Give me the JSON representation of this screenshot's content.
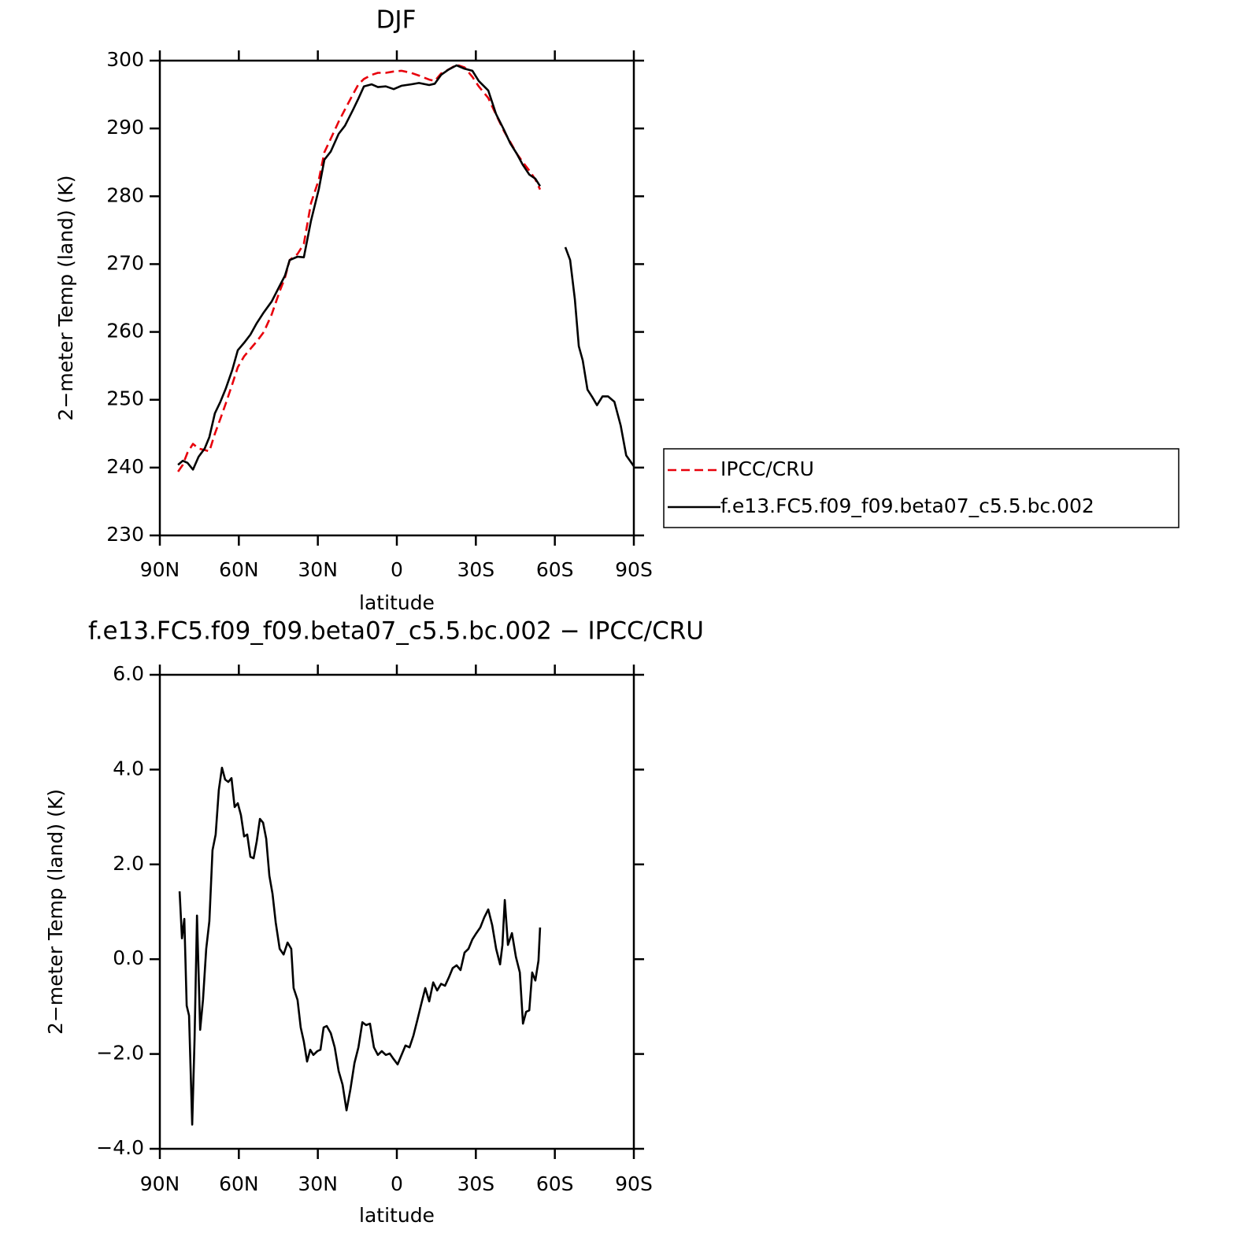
{
  "chart_data": [
    {
      "type": "line",
      "title": "DJF",
      "xlabel": "latitude",
      "ylabel": "2−meter Temp (land) (K)",
      "xlim": [
        90,
        -90
      ],
      "xticks": [
        {
          "value": 90,
          "label": "90N"
        },
        {
          "value": 60,
          "label": "60N"
        },
        {
          "value": 30,
          "label": "30N"
        },
        0,
        {
          "value": -30,
          "label": "30S"
        },
        {
          "value": -60,
          "label": "60S"
        },
        {
          "value": -90,
          "label": "90S"
        }
      ],
      "ylim": [
        230,
        300
      ],
      "yticks": [
        230,
        240,
        250,
        260,
        270,
        280,
        290,
        300
      ],
      "legend": "right",
      "x": [
        83.1,
        81.3,
        79.5,
        77.4,
        75.3,
        73,
        71.2,
        69.1,
        67,
        64.9,
        62.5,
        60.4,
        58,
        55.6,
        53.2,
        50.5,
        47.5,
        44.5,
        42.5,
        40.7,
        37.7,
        35.3,
        32.6,
        29.6,
        27.5,
        25.1,
        22.1,
        19.7,
        16.7,
        14.6,
        12.5,
        9.6,
        7.2,
        4.2,
        1.2,
        -1.8,
        -5.4,
        -8.4,
        -12.3,
        -14.4,
        -16.8,
        -19.7,
        -22.7,
        -25.7,
        -28.7,
        -31.1,
        -34.7,
        -37.7,
        -40.7,
        -43.1,
        -45.5,
        -47.9,
        -50.3,
        -52.6,
        -54.4,
        -59,
        -64,
        -65.8,
        -67.6,
        -69.1,
        -70.6,
        -72.4,
        -74.2,
        -76,
        -78.1,
        -80.2,
        -82.6,
        -85,
        -87.1,
        -90
      ],
      "series": [
        {
          "name": "IPCC/CRU",
          "color": "#e8000b",
          "dashed": true,
          "values": [
            239.4,
            240.4,
            242.2,
            243.5,
            242.8,
            242.6,
            242.4,
            245,
            247.2,
            249.5,
            252.3,
            254.8,
            256.4,
            257.5,
            258.6,
            260,
            262.6,
            266,
            268,
            270.6,
            271.5,
            273,
            279,
            282.5,
            286.5,
            288.5,
            291,
            292.8,
            295,
            296.5,
            297.3,
            297.9,
            298.2,
            298.2,
            298.4,
            298.5,
            298.2,
            297.8,
            297.2,
            297,
            298.1,
            298.7,
            299.4,
            299,
            297.6,
            296.2,
            294.5,
            292,
            289.6,
            288,
            286.3,
            285,
            283.8,
            282.5,
            281,
            null,
            null,
            null,
            null,
            null,
            null,
            null,
            null,
            null,
            null,
            null,
            null,
            null,
            null,
            null
          ]
        },
        {
          "name": "f.e13.FC5.f09_f09.beta07_c5.5.bc.002",
          "color": "#000000",
          "dashed": false,
          "values": [
            240.4,
            241,
            240.7,
            239.7,
            241.6,
            242.8,
            244.5,
            248,
            249.7,
            251.7,
            254.4,
            257.3,
            258.4,
            259.6,
            261.3,
            262.9,
            264.5,
            266.8,
            268.3,
            270.6,
            271.1,
            271,
            276.4,
            281.1,
            285.4,
            286.6,
            289.2,
            290.4,
            292.7,
            294.4,
            296.2,
            296.5,
            296.1,
            296.2,
            295.8,
            296.3,
            296.5,
            296.7,
            296.4,
            296.6,
            297.9,
            298.7,
            299.3,
            298.8,
            298.5,
            297,
            295.6,
            292.1,
            289.8,
            287.8,
            286.3,
            284.6,
            283.2,
            282.6,
            281.5,
            null,
            272.5,
            270.6,
            264.8,
            257.9,
            255.8,
            251.5,
            250.4,
            249.2,
            250.5,
            250.5,
            249.7,
            246.2,
            241.8,
            240.2
          ]
        }
      ]
    },
    {
      "type": "line",
      "title": "f.e13.FC5.f09_f09.beta07_c5.5.bc.002 − IPCC/CRU",
      "xlabel": "latitude",
      "ylabel": "2−meter Temp (land) (K)",
      "xlim": [
        90,
        -90
      ],
      "xticks": [
        {
          "value": 90,
          "label": "90N"
        },
        {
          "value": 60,
          "label": "60N"
        },
        {
          "value": 30,
          "label": "30N"
        },
        0,
        {
          "value": -30,
          "label": "30S"
        },
        {
          "value": -60,
          "label": "60S"
        },
        {
          "value": -90,
          "label": "90S"
        }
      ],
      "ylim": [
        -4,
        6
      ],
      "yticks": [
        {
          "value": -4,
          "label": "−4.0"
        },
        {
          "value": -2,
          "label": "−2.0"
        },
        {
          "value": 0,
          "label": "0.0"
        },
        {
          "value": 2,
          "label": "2.0"
        },
        {
          "value": 4,
          "label": "4.0"
        },
        {
          "value": 6,
          "label": "6.0"
        }
      ],
      "color": "#000000",
      "x": [
        82.5,
        81.6,
        80.7,
        79.8,
        78.9,
        77.7,
        76.8,
        75.9,
        74.7,
        73.6,
        72.4,
        71.2,
        70,
        68.8,
        67.6,
        66.4,
        65.2,
        64,
        62.8,
        61.6,
        60.4,
        59.2,
        58,
        56.8,
        55.6,
        54.4,
        53.2,
        52,
        50.8,
        49.6,
        48.4,
        47.2,
        46,
        44.5,
        43,
        41.5,
        40.1,
        39.2,
        37.7,
        36.5,
        35.3,
        34.1,
        32.9,
        31.7,
        30.2,
        29,
        27.8,
        26.6,
        25.1,
        23.6,
        22.1,
        20.6,
        19.1,
        17.6,
        16.1,
        14.6,
        13.1,
        11.7,
        10.2,
        8.7,
        7.2,
        5.7,
        4.2,
        2.7,
        1.2,
        -0.3,
        -1.8,
        -3.3,
        -4.8,
        -6.3,
        -7.8,
        -9.3,
        -10.8,
        -12.3,
        -13.8,
        -15.3,
        -16.8,
        -18.3,
        -19.7,
        -21.2,
        -22.7,
        -24.2,
        -25.7,
        -27.2,
        -28.7,
        -30.2,
        -31.7,
        -33.2,
        -34.7,
        -36.2,
        -37.7,
        -39.2,
        -40.1,
        -41,
        -42.2,
        -43.7,
        -45.2,
        -46.7,
        -47.9,
        -49.1,
        -50.3,
        -51.4,
        -52.6,
        -53.8,
        -54.4
      ],
      "values": [
        1.43,
        0.44,
        0.85,
        -0.98,
        -1.19,
        -3.49,
        -1.69,
        0.92,
        -1.49,
        -0.86,
        0.22,
        0.8,
        2.3,
        2.63,
        3.57,
        4.04,
        3.79,
        3.74,
        3.82,
        3.21,
        3.29,
        3.04,
        2.59,
        2.63,
        2.16,
        2.13,
        2.49,
        2.96,
        2.88,
        2.54,
        1.76,
        1.38,
        0.77,
        0.22,
        0.1,
        0.35,
        0.22,
        -0.61,
        -0.86,
        -1.44,
        -1.74,
        -2.16,
        -1.91,
        -2.02,
        -1.94,
        -1.91,
        -1.44,
        -1.41,
        -1.56,
        -1.86,
        -2.36,
        -2.65,
        -3.19,
        -2.74,
        -2.19,
        -1.86,
        -1.33,
        -1.39,
        -1.36,
        -1.86,
        -2.02,
        -1.94,
        -2.02,
        -1.99,
        -2.11,
        -2.22,
        -2.02,
        -1.82,
        -1.86,
        -1.61,
        -1.28,
        -0.94,
        -0.61,
        -0.89,
        -0.49,
        -0.66,
        -0.52,
        -0.56,
        -0.39,
        -0.19,
        -0.13,
        -0.23,
        0.14,
        0.22,
        0.42,
        0.55,
        0.67,
        0.88,
        1.05,
        0.72,
        0.22,
        -0.11,
        0.3,
        1.25,
        0.3,
        0.55,
        0.05,
        -0.28,
        -1.36,
        -1.11,
        -1.08,
        -0.28,
        -0.45,
        -0.03,
        0.67
      ]
    }
  ]
}
